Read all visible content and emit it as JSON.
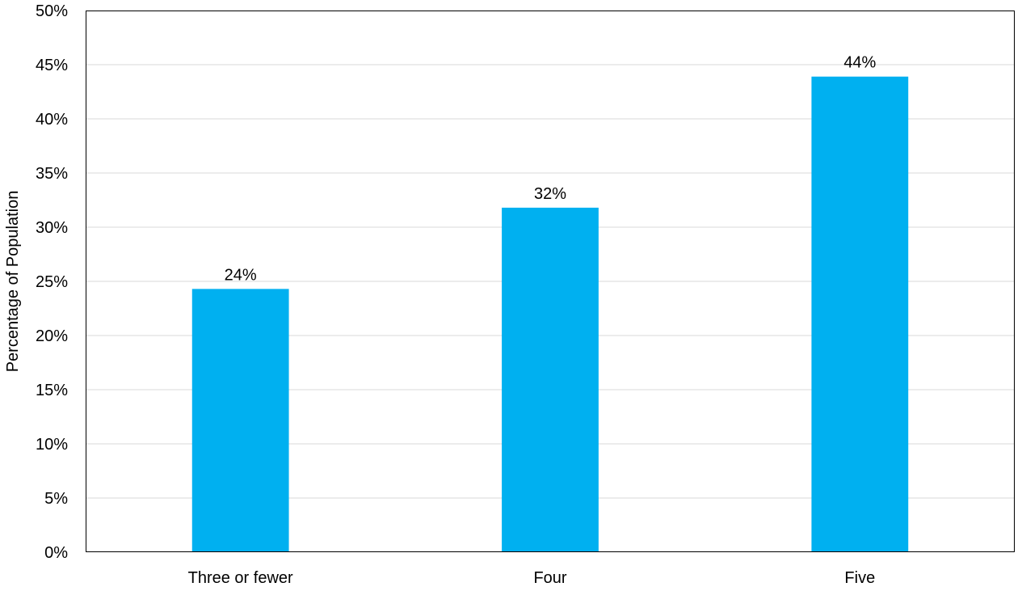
{
  "chart_data": {
    "type": "bar",
    "categories": [
      "Three or fewer",
      "Four",
      "Five"
    ],
    "values": [
      24.3,
      31.8,
      43.9
    ],
    "data_labels": [
      "24%",
      "32%",
      "44%"
    ],
    "title": "",
    "xlabel": "",
    "ylabel": "Percentage of Population",
    "ylim": [
      0,
      50
    ],
    "y_ticks": [
      0,
      5,
      10,
      15,
      20,
      25,
      30,
      35,
      40,
      45,
      50
    ],
    "y_tick_labels": [
      "0%",
      "5%",
      "10%",
      "15%",
      "20%",
      "25%",
      "30%",
      "35%",
      "40%",
      "45%",
      "50%"
    ],
    "grid": true,
    "legend": "none",
    "colors": {
      "bar": "#00B0F0",
      "grid": "#D9D9D9",
      "axis": "#000000",
      "text": "#000000"
    }
  }
}
